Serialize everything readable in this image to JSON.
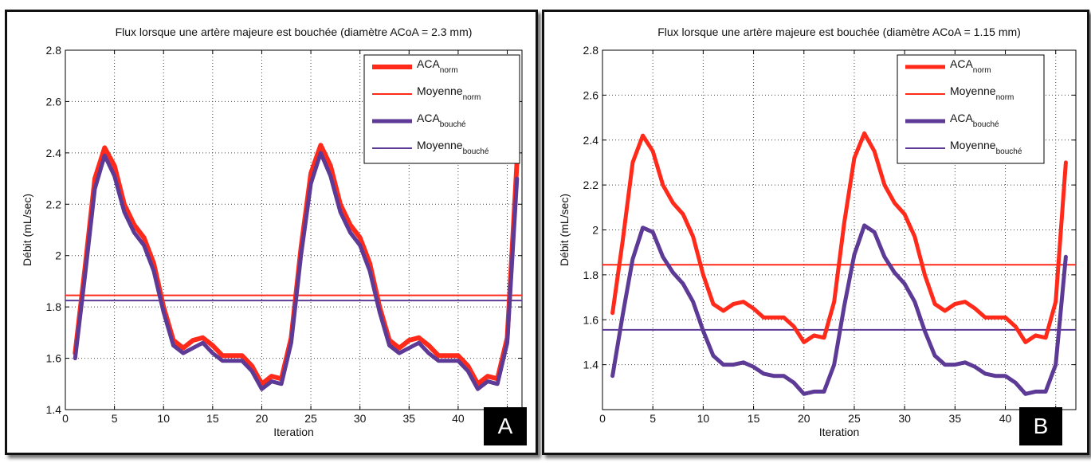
{
  "chart_data": [
    {
      "type": "line",
      "panel_label": "A",
      "title": "Flux lorsque une artère majeure est bouchée (diamètre ACoA = 2.3 mm)",
      "xlabel": "Iteration",
      "ylabel": "Débit (mL/sec)",
      "xlim": [
        0,
        46.5
      ],
      "ylim": [
        1.4,
        2.8
      ],
      "xticks": [
        0,
        5,
        10,
        15,
        20,
        25,
        30,
        35,
        40,
        45
      ],
      "yticks": [
        1.4,
        1.6,
        1.8,
        2,
        2.2,
        2.4,
        2.6,
        2.8
      ],
      "ytick_labels": [
        "1.4",
        "1.6",
        "1.8",
        "2",
        "2.2",
        "2.4",
        "2.6",
        "2.8"
      ],
      "grid": true,
      "legend_position": "top-right",
      "x": [
        1,
        2,
        3,
        4,
        5,
        6,
        7,
        8,
        9,
        10,
        11,
        12,
        13,
        14,
        15,
        16,
        17,
        18,
        19,
        20,
        21,
        22,
        23,
        24,
        25,
        26,
        27,
        28,
        29,
        30,
        31,
        32,
        33,
        34,
        35,
        36,
        37,
        38,
        39,
        40,
        41,
        42,
        43,
        44,
        45,
        46
      ],
      "series": [
        {
          "name": "ACA",
          "sub": "norm",
          "kind": "data",
          "color": "#ff2a1a",
          "width": 6,
          "values": [
            1.62,
            1.95,
            2.3,
            2.42,
            2.35,
            2.2,
            2.12,
            2.07,
            1.97,
            1.8,
            1.67,
            1.64,
            1.67,
            1.68,
            1.65,
            1.61,
            1.61,
            1.61,
            1.57,
            1.5,
            1.53,
            1.52,
            1.68,
            2.03,
            2.32,
            2.43,
            2.35,
            2.2,
            2.12,
            2.07,
            1.97,
            1.8,
            1.67,
            1.64,
            1.67,
            1.68,
            1.65,
            1.61,
            1.61,
            1.61,
            1.57,
            1.5,
            1.53,
            1.52,
            1.68,
            2.37
          ]
        },
        {
          "name": "Moyenne",
          "sub": "norm",
          "kind": "mean",
          "color": "#ff2a1a",
          "width": 2,
          "value": 1.845
        },
        {
          "name": "ACA",
          "sub": "bouché",
          "kind": "data",
          "color": "#5c3a96",
          "width": 5,
          "values": [
            1.6,
            1.92,
            2.26,
            2.39,
            2.31,
            2.17,
            2.09,
            2.04,
            1.94,
            1.78,
            1.65,
            1.62,
            1.64,
            1.66,
            1.62,
            1.59,
            1.59,
            1.59,
            1.55,
            1.48,
            1.51,
            1.5,
            1.66,
            2.0,
            2.28,
            2.4,
            2.31,
            2.17,
            2.09,
            2.04,
            1.94,
            1.78,
            1.65,
            1.62,
            1.64,
            1.66,
            1.62,
            1.59,
            1.59,
            1.59,
            1.55,
            1.48,
            1.51,
            1.5,
            1.66,
            2.3
          ]
        },
        {
          "name": "Moyenne",
          "sub": "bouché",
          "kind": "mean",
          "color": "#5c3a96",
          "width": 2,
          "value": 1.825
        }
      ]
    },
    {
      "type": "line",
      "panel_label": "B",
      "title": "Flux lorsque une artère majeure est bouchée (diamètre ACoA = 1.15 mm)",
      "xlabel": "Iteration",
      "ylabel": "Débit (mL/sec)",
      "xlim": [
        0,
        47
      ],
      "ylim": [
        1.2,
        2.8
      ],
      "xticks": [
        0,
        5,
        10,
        15,
        20,
        25,
        30,
        35,
        40,
        45
      ],
      "yticks": [
        1.4,
        1.6,
        1.8,
        2,
        2.2,
        2.4,
        2.6,
        2.8
      ],
      "ytick_labels": [
        "1.4",
        "1.6",
        "1.8",
        "2",
        "2.2",
        "2.4",
        "2.6",
        "2.8"
      ],
      "grid": true,
      "legend_position": "top-right",
      "x": [
        1,
        2,
        3,
        4,
        5,
        6,
        7,
        8,
        9,
        10,
        11,
        12,
        13,
        14,
        15,
        16,
        17,
        18,
        19,
        20,
        21,
        22,
        23,
        24,
        25,
        26,
        27,
        28,
        29,
        30,
        31,
        32,
        33,
        34,
        35,
        36,
        37,
        38,
        39,
        40,
        41,
        42,
        43,
        44,
        45,
        46
      ],
      "series": [
        {
          "name": "ACA",
          "sub": "norm",
          "kind": "data",
          "color": "#ff2a1a",
          "width": 5,
          "values": [
            1.63,
            1.95,
            2.3,
            2.42,
            2.35,
            2.2,
            2.12,
            2.07,
            1.97,
            1.8,
            1.67,
            1.64,
            1.67,
            1.68,
            1.65,
            1.61,
            1.61,
            1.61,
            1.57,
            1.5,
            1.53,
            1.52,
            1.68,
            2.03,
            2.32,
            2.43,
            2.35,
            2.2,
            2.12,
            2.07,
            1.97,
            1.8,
            1.67,
            1.64,
            1.67,
            1.68,
            1.65,
            1.61,
            1.61,
            1.61,
            1.57,
            1.5,
            1.53,
            1.52,
            1.68,
            2.3
          ]
        },
        {
          "name": "Moyenne",
          "sub": "norm",
          "kind": "mean",
          "color": "#ff2a1a",
          "width": 2,
          "value": 1.845
        },
        {
          "name": "ACA",
          "sub": "bouché",
          "kind": "data",
          "color": "#5c3a96",
          "width": 5,
          "values": [
            1.35,
            1.62,
            1.87,
            2.01,
            1.99,
            1.88,
            1.81,
            1.76,
            1.68,
            1.55,
            1.44,
            1.4,
            1.4,
            1.41,
            1.39,
            1.36,
            1.35,
            1.35,
            1.32,
            1.27,
            1.28,
            1.28,
            1.4,
            1.66,
            1.89,
            2.02,
            1.99,
            1.88,
            1.81,
            1.76,
            1.68,
            1.55,
            1.44,
            1.4,
            1.4,
            1.41,
            1.39,
            1.36,
            1.35,
            1.35,
            1.32,
            1.27,
            1.28,
            1.28,
            1.4,
            1.88
          ]
        },
        {
          "name": "Moyenne",
          "sub": "bouché",
          "kind": "mean",
          "color": "#5c3a96",
          "width": 2,
          "value": 1.555
        }
      ]
    }
  ]
}
